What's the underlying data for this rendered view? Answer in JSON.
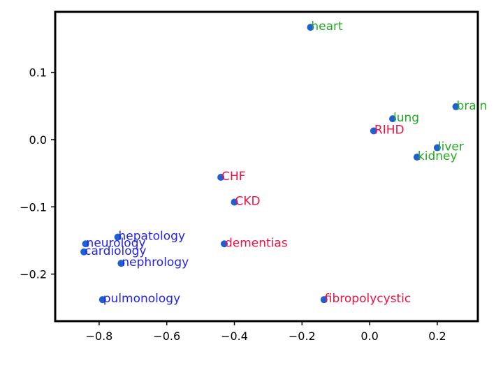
{
  "chart_data": {
    "type": "scatter",
    "title": "",
    "xlabel": "",
    "ylabel": "",
    "xlim": [
      -0.93,
      0.32
    ],
    "ylim": [
      -0.27,
      0.19
    ],
    "xticks": [
      -0.8,
      -0.6,
      -0.4,
      -0.2,
      0.0,
      0.2
    ],
    "xtick_labels": [
      "−0.8",
      "−0.6",
      "−0.4",
      "−0.2",
      "0.0",
      "0.2"
    ],
    "yticks": [
      -0.2,
      -0.1,
      0.0,
      0.1
    ],
    "ytick_labels": [
      "−0.2",
      "−0.1",
      "0.0",
      "0.1"
    ],
    "grid": false,
    "marker_color": "#1f5fd6",
    "label_colors": {
      "organ": "#22aa22",
      "disease": "#ee1144",
      "specialty": "#2222ee"
    },
    "points": [
      {
        "label": "heart",
        "x": -0.175,
        "y": 0.167,
        "group": "organ"
      },
      {
        "label": "brain",
        "x": 0.255,
        "y": 0.049,
        "group": "organ"
      },
      {
        "label": "lung",
        "x": 0.068,
        "y": 0.031,
        "group": "organ"
      },
      {
        "label": "liver",
        "x": 0.2,
        "y": -0.012,
        "group": "organ"
      },
      {
        "label": "kidney",
        "x": 0.14,
        "y": -0.026,
        "group": "organ"
      },
      {
        "label": "RIHD",
        "x": 0.012,
        "y": 0.013,
        "group": "disease"
      },
      {
        "label": "CHF",
        "x": -0.44,
        "y": -0.056,
        "group": "disease"
      },
      {
        "label": "CKD",
        "x": -0.4,
        "y": -0.093,
        "group": "disease"
      },
      {
        "label": "dementias",
        "x": -0.43,
        "y": -0.155,
        "group": "disease"
      },
      {
        "label": "fibropolycystic",
        "x": -0.135,
        "y": -0.238,
        "group": "disease"
      },
      {
        "label": "hepatology",
        "x": -0.745,
        "y": -0.145,
        "group": "specialty"
      },
      {
        "label": "neurology",
        "x": -0.84,
        "y": -0.155,
        "group": "specialty"
      },
      {
        "label": "cardiology",
        "x": -0.845,
        "y": -0.167,
        "group": "specialty"
      },
      {
        "label": "nephrology",
        "x": -0.735,
        "y": -0.184,
        "group": "specialty"
      },
      {
        "label": "pulmonology",
        "x": -0.79,
        "y": -0.238,
        "group": "specialty"
      }
    ]
  }
}
